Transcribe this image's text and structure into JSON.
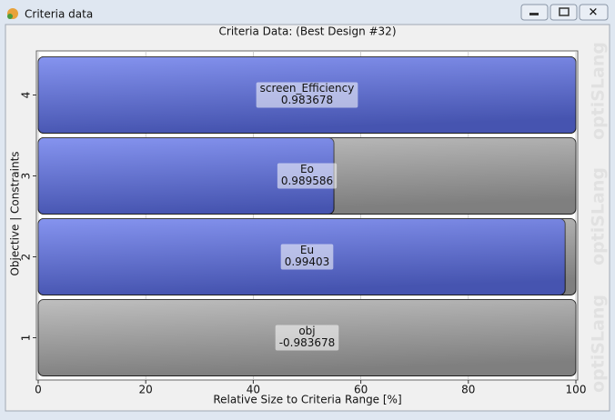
{
  "window": {
    "title": "Criteria data"
  },
  "chart_data": {
    "type": "bar",
    "orientation": "horizontal",
    "title": "Criteria Data: (Best Design #32)",
    "x_label": "Relative Size to Criteria Range [%]",
    "y_label": "Objective | Constraints",
    "categories": [
      "1",
      "2",
      "3",
      "4"
    ],
    "values": [
      0,
      98,
      55,
      100
    ],
    "criteria_names": [
      "obj",
      "Eu",
      "Eo",
      "screen_Efficiency"
    ],
    "criteria_values": [
      -0.983678,
      0.99403,
      0.989586,
      0.983678
    ],
    "xlim": [
      0,
      100
    ],
    "xticks": [
      0,
      20,
      40,
      60,
      80,
      100
    ],
    "grid": true,
    "color": "#5d70ea",
    "track_color": "#a9a9a9",
    "watermark": "optiSLang"
  }
}
